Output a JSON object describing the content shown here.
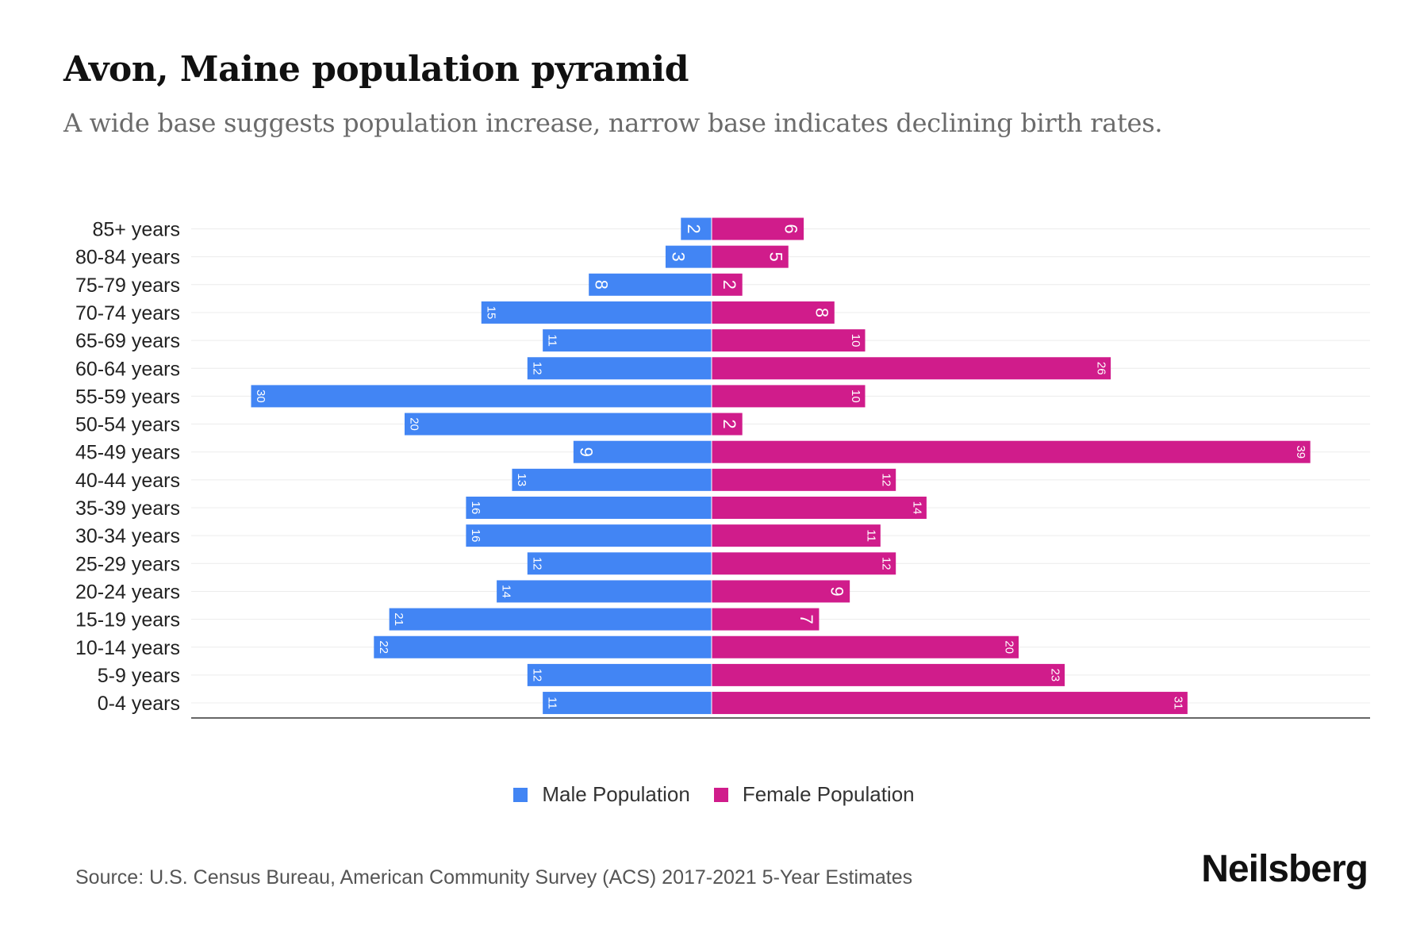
{
  "title": "Avon, Maine population pyramid",
  "subtitle": "A wide base suggests population increase, narrow base indicates declining birth rates.",
  "source": "Source: U.S. Census Bureau, American Community Survey (ACS) 2017-2021 5-Year Estimates",
  "logo": "Neilsberg",
  "colors": {
    "male": "#4285f4",
    "female": "#d01c8b"
  },
  "chart_data": {
    "type": "bar",
    "orientation": "horizontal-pyramid",
    "categories": [
      "85+ years",
      "80-84 years",
      "75-79 years",
      "70-74 years",
      "65-69 years",
      "60-64 years",
      "55-59 years",
      "50-54 years",
      "45-49 years",
      "40-44 years",
      "35-39 years",
      "30-34 years",
      "25-29 years",
      "20-24 years",
      "15-19 years",
      "10-14 years",
      "5-9 years",
      "0-4 years"
    ],
    "series": [
      {
        "name": "Male Population",
        "values": [
          2,
          3,
          8,
          15,
          11,
          12,
          30,
          20,
          9,
          13,
          16,
          16,
          12,
          14,
          21,
          22,
          12,
          11
        ]
      },
      {
        "name": "Female Population",
        "values": [
          6,
          5,
          2,
          8,
          10,
          26,
          10,
          2,
          39,
          12,
          14,
          11,
          12,
          9,
          7,
          20,
          23,
          31
        ]
      }
    ],
    "legend_position": "bottom",
    "grid": true
  }
}
